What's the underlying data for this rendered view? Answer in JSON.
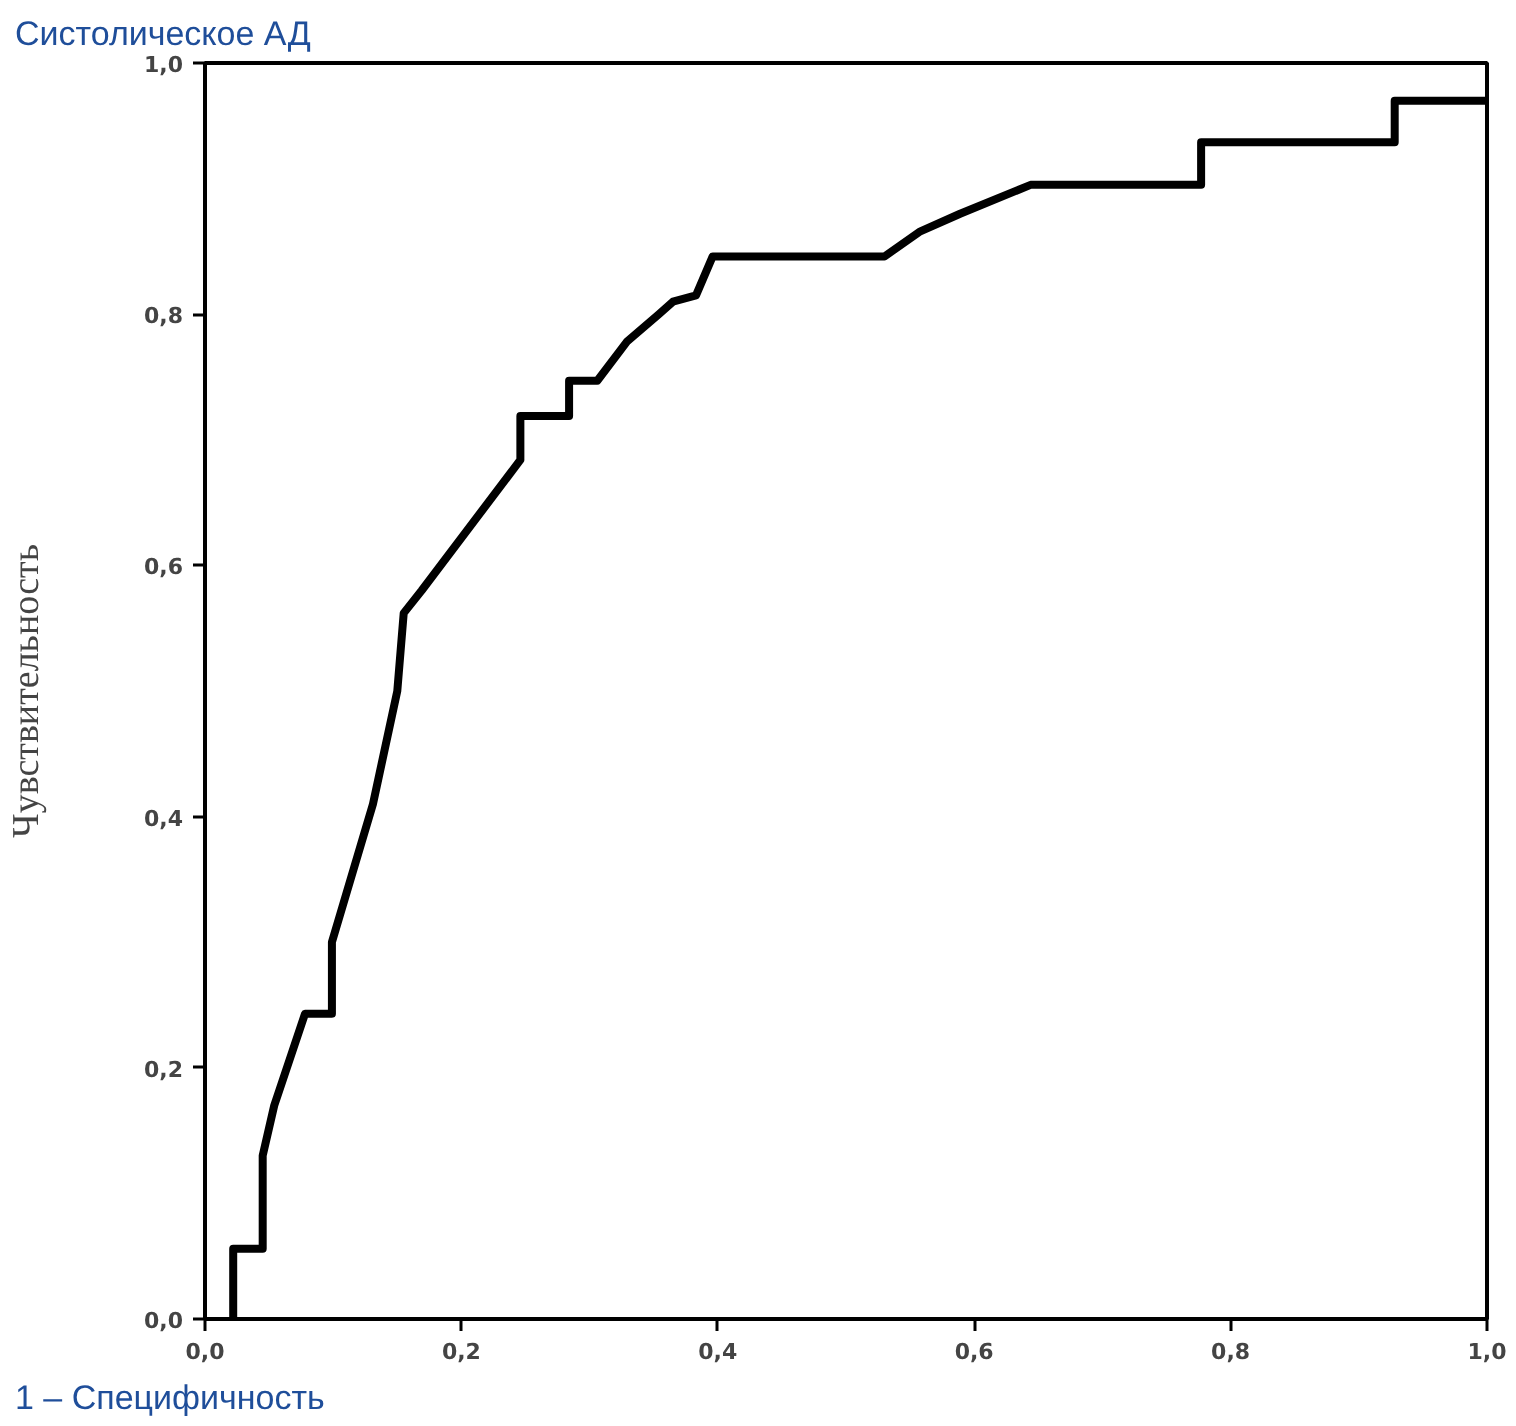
{
  "chart_data": {
    "type": "line",
    "title": "Систолическое АД",
    "xlabel": "1 – Специфичность",
    "ylabel": "Чувствительность",
    "x": [
      0.022,
      0.022,
      0.045,
      0.045,
      0.054,
      0.078,
      0.099,
      0.099,
      0.131,
      0.15,
      0.155,
      0.169,
      0.246,
      0.246,
      0.284,
      0.284,
      0.306,
      0.329,
      0.354,
      0.365,
      0.383,
      0.396,
      0.53,
      0.558,
      0.589,
      0.644,
      0.777,
      0.777,
      0.928,
      0.928,
      1.0
    ],
    "series": [
      {
        "color": "#000000",
        "values": [
          0.0,
          0.056,
          0.056,
          0.13,
          0.17,
          0.243,
          0.243,
          0.3,
          0.41,
          0.5,
          0.562,
          0.58,
          0.684,
          0.719,
          0.719,
          0.747,
          0.747,
          0.778,
          0.8,
          0.81,
          0.815,
          0.846,
          0.846,
          0.866,
          0.88,
          0.903,
          0.903,
          0.937,
          0.937,
          0.97,
          0.97
        ]
      }
    ],
    "xlim": [
      0,
      1
    ],
    "ylim": [
      0,
      1
    ],
    "xticks": [
      {
        "value": 0,
        "label": "0,0"
      },
      {
        "value": 0.2,
        "label": "0,2"
      },
      {
        "value": 0.4,
        "label": "0,4"
      },
      {
        "value": 0.6,
        "label": "0,6"
      },
      {
        "value": 0.8,
        "label": "0,8"
      },
      {
        "value": 1,
        "label": "1,0"
      }
    ],
    "yticks": [
      {
        "value": 0,
        "label": "0,0"
      },
      {
        "value": 0.2,
        "label": "0,2"
      },
      {
        "value": 0.4,
        "label": "0,4"
      },
      {
        "value": 0.6,
        "label": "0,6"
      },
      {
        "value": 0.8,
        "label": "0,8"
      },
      {
        "value": 1,
        "label": "1,0"
      }
    ],
    "marker": "none",
    "line_style": "solid"
  }
}
